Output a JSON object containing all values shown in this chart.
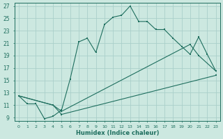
{
  "bg_color": "#cce8e0",
  "grid_color": "#aacfca",
  "line_color": "#1e6e5e",
  "xlim": [
    -0.5,
    23.5
  ],
  "ylim": [
    8.5,
    27.5
  ],
  "xticks": [
    0,
    1,
    2,
    3,
    4,
    5,
    6,
    7,
    8,
    9,
    10,
    11,
    12,
    13,
    14,
    15,
    16,
    17,
    18,
    19,
    20,
    21,
    22,
    23
  ],
  "yticks": [
    9,
    11,
    13,
    15,
    17,
    19,
    21,
    23,
    25,
    27
  ],
  "xlabel": "Humidex (Indice chaleur)",
  "line1_x": [
    0,
    1,
    2,
    3,
    4,
    5,
    6,
    7,
    8,
    9,
    10,
    11,
    12,
    13,
    14,
    15,
    16,
    17,
    18,
    19,
    20,
    21,
    22,
    23
  ],
  "line1_y": [
    12.5,
    11.2,
    11.2,
    8.8,
    9.2,
    10.2,
    15.2,
    21.2,
    21.8,
    19.5,
    24.0,
    25.2,
    25.5,
    27.0,
    24.5,
    24.5,
    23.2,
    23.2,
    21.8,
    20.5,
    19.2,
    22.0,
    19.2,
    16.5
  ],
  "line2_x": [
    0,
    4,
    5,
    20,
    21,
    23
  ],
  "line2_y": [
    12.5,
    11.0,
    10.0,
    20.8,
    19.0,
    16.5
  ],
  "line3_x": [
    0,
    4,
    5,
    23
  ],
  "line3_y": [
    12.5,
    11.0,
    9.5,
    15.8
  ]
}
